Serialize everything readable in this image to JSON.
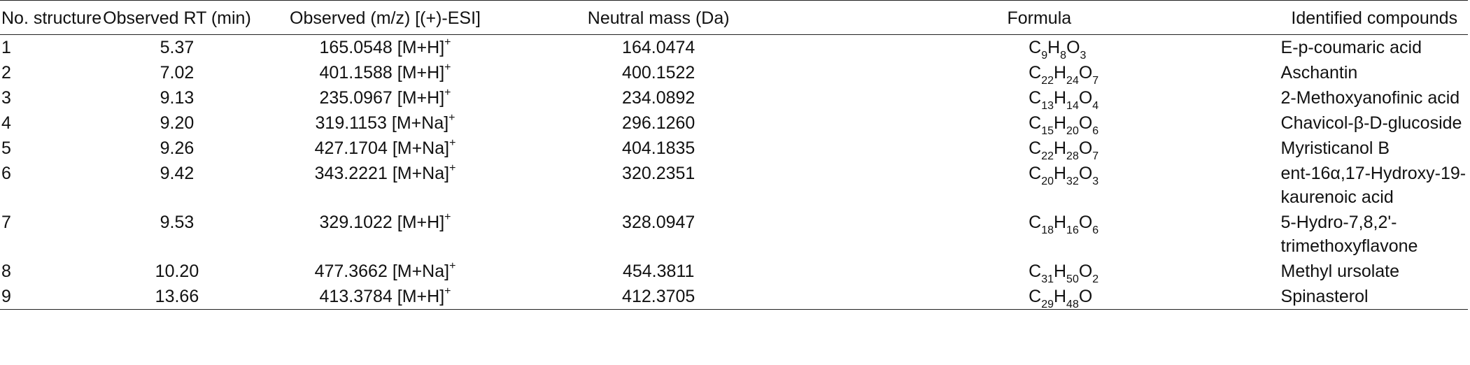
{
  "headers": [
    "No. structure",
    "Observed RT (min)",
    "Observed (m/z) [(+)-ESI]",
    "Neutral mass (Da)",
    "Formula",
    "Identified compounds"
  ],
  "rows": [
    {
      "no": "1",
      "rt": "5.37",
      "mz": "165.0548",
      "adduct": "[M+H]",
      "charge": "+",
      "nm": "164.0474",
      "formula": [
        [
          "C",
          "9"
        ],
        [
          "H",
          "8"
        ],
        [
          "O",
          "3"
        ]
      ],
      "compound": "E-p-coumaric acid"
    },
    {
      "no": "2",
      "rt": "7.02",
      "mz": "401.1588",
      "adduct": "[M+H]",
      "charge": "+",
      "nm": "400.1522",
      "formula": [
        [
          "C",
          "22"
        ],
        [
          "H",
          "24"
        ],
        [
          "O",
          "7"
        ]
      ],
      "compound": "Aschantin"
    },
    {
      "no": "3",
      "rt": "9.13",
      "mz": "235.0967",
      "adduct": "[M+H]",
      "charge": "+",
      "nm": "234.0892",
      "formula": [
        [
          "C",
          "13"
        ],
        [
          "H",
          "14"
        ],
        [
          "O",
          "4"
        ]
      ],
      "compound": "2-Methoxyanofinic acid"
    },
    {
      "no": "4",
      "rt": "9.20",
      "mz": "319.1153",
      "adduct": "[M+Na]",
      "charge": "+",
      "nm": "296.1260",
      "formula": [
        [
          "C",
          "15"
        ],
        [
          "H",
          "20"
        ],
        [
          "O",
          "6"
        ]
      ],
      "compound": "Chavicol-β-D-glucoside"
    },
    {
      "no": "5",
      "rt": "9.26",
      "mz": "427.1704",
      "adduct": "[M+Na]",
      "charge": "+",
      "nm": "404.1835",
      "formula": [
        [
          "C",
          "22"
        ],
        [
          "H",
          "28"
        ],
        [
          "O",
          "7"
        ]
      ],
      "compound": "Myristicanol B"
    },
    {
      "no": "6",
      "rt": "9.42",
      "mz": "343.2221",
      "adduct": "[M+Na]",
      "charge": "+",
      "nm": "320.2351",
      "formula": [
        [
          "C",
          "20"
        ],
        [
          "H",
          "32"
        ],
        [
          "O",
          "3"
        ]
      ],
      "compound": "ent-16α,17-Hydroxy-19-kaurenoic acid"
    },
    {
      "no": "7",
      "rt": "9.53",
      "mz": "329.1022",
      "adduct": "[M+H]",
      "charge": "+",
      "nm": "328.0947",
      "formula": [
        [
          "C",
          "18"
        ],
        [
          "H",
          "16"
        ],
        [
          "O",
          "6"
        ]
      ],
      "compound": "5-Hydro-7,8,2'-trimethoxyflavone"
    },
    {
      "no": "8",
      "rt": "10.20",
      "mz": "477.3662",
      "adduct": "[M+Na]",
      "charge": "+",
      "nm": "454.3811",
      "formula": [
        [
          "C",
          "31"
        ],
        [
          "H",
          "50"
        ],
        [
          "O",
          "2"
        ]
      ],
      "compound": "Methyl ursolate"
    },
    {
      "no": "9",
      "rt": "13.66",
      "mz": "413.3784",
      "adduct": "[M+H]",
      "charge": "+",
      "nm": "412.3705",
      "formula": [
        [
          "C",
          "29"
        ],
        [
          "H",
          "48"
        ],
        [
          "O",
          ""
        ]
      ],
      "compound": "Spinasterol"
    }
  ]
}
